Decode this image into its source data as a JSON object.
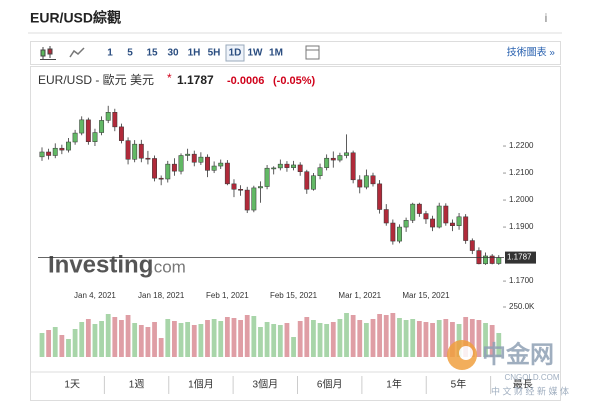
{
  "header": {
    "title": "EUR/USD綜觀",
    "info": "i"
  },
  "toolbar": {
    "intervals": [
      "1",
      "5",
      "15",
      "30",
      "1H",
      "5H",
      "1D",
      "1W",
      "1M"
    ],
    "selected_index": 6,
    "link": "技術圖表 »"
  },
  "quote": {
    "name": "EUR/USD - 歐元 美元",
    "marker": "*",
    "change": "-0.0006",
    "change_pct": "(-0.05%)"
  },
  "chart_data": {
    "type": "candlestick",
    "categories": [
      null,
      null,
      null,
      null,
      null,
      null,
      null,
      null,
      "Jan 4, 2021",
      null,
      null,
      null,
      null,
      null,
      null,
      null,
      null,
      null,
      "Jan 18, 2021",
      null,
      null,
      null,
      null,
      null,
      null,
      null,
      null,
      null,
      "Feb 1, 2021",
      null,
      null,
      null,
      null,
      null,
      null,
      null,
      null,
      null,
      "Feb 15, 2021",
      null,
      null,
      null,
      null,
      null,
      null,
      null,
      null,
      null,
      "Mar 1, 2021",
      null,
      null,
      null,
      null,
      null,
      null,
      null,
      null,
      null,
      "Mar 15, 2021",
      null,
      null,
      null,
      null,
      null,
      null,
      null,
      null,
      null,
      null,
      null
    ],
    "open": [
      1.216,
      1.2178,
      1.2165,
      1.2192,
      1.2185,
      1.2215,
      1.2248,
      1.2297,
      1.2216,
      1.225,
      1.2295,
      1.2325,
      1.2271,
      1.222,
      1.2151,
      1.2207,
      1.2155,
      1.2154,
      1.2081,
      1.2078,
      1.2133,
      1.2107,
      1.2165,
      1.217,
      1.214,
      1.2159,
      1.211,
      1.2126,
      1.2137,
      1.206,
      1.204,
      1.2037,
      1.1963,
      1.2045,
      1.205,
      1.2118,
      1.2119,
      1.2133,
      1.212,
      1.213,
      1.2105,
      1.204,
      1.209,
      1.212,
      1.2155,
      1.2148,
      1.2165,
      1.2175,
      1.2075,
      1.2048,
      1.209,
      1.206,
      1.1965,
      1.1915,
      1.1848,
      1.19,
      1.1925,
      1.1985,
      1.195,
      1.193,
      1.19,
      1.1978,
      1.1915,
      1.1905,
      1.1938,
      1.185,
      1.1813,
      1.1764,
      1.1793,
      1.1765
    ],
    "high": [
      1.2195,
      1.219,
      1.221,
      1.2205,
      1.223,
      1.226,
      1.231,
      1.2305,
      1.2264,
      1.231,
      1.2349,
      1.2338,
      1.2283,
      1.2232,
      1.2222,
      1.2223,
      1.2182,
      1.2165,
      1.2091,
      1.2145,
      1.2155,
      1.2173,
      1.219,
      1.2183,
      1.2177,
      1.2169,
      1.2143,
      1.215,
      1.2148,
      1.2077,
      1.2055,
      1.2049,
      1.2053,
      1.2069,
      1.213,
      1.2125,
      1.215,
      1.2144,
      1.2145,
      1.214,
      1.2112,
      1.21,
      1.2135,
      1.2169,
      1.218,
      1.2175,
      1.2243,
      1.2183,
      1.2092,
      1.2113,
      1.2101,
      1.2074,
      1.1985,
      1.1928,
      1.191,
      1.1935,
      1.199,
      1.199,
      1.196,
      1.1942,
      1.199,
      1.1988,
      1.1928,
      1.1952,
      1.1948,
      1.1858,
      1.1825,
      1.1806,
      1.18,
      1.1796
    ],
    "low": [
      1.2145,
      1.215,
      1.2155,
      1.217,
      1.2176,
      1.2205,
      1.224,
      1.2205,
      1.22,
      1.224,
      1.2285,
      1.2255,
      1.221,
      1.2132,
      1.214,
      1.214,
      1.2132,
      1.2069,
      1.2055,
      1.2065,
      1.209,
      1.2095,
      1.2145,
      1.2125,
      1.213,
      1.2085,
      1.21,
      1.2115,
      1.2055,
      1.2011,
      1.2016,
      1.1952,
      1.1955,
      1.199,
      1.204,
      1.2095,
      1.211,
      1.2105,
      1.211,
      1.209,
      1.2023,
      1.2035,
      1.2077,
      1.211,
      1.212,
      1.214,
      1.2155,
      1.2062,
      1.2025,
      1.204,
      1.205,
      1.195,
      1.1905,
      1.1835,
      1.184,
      1.1882,
      1.1915,
      1.1938,
      1.1912,
      1.1885,
      1.1895,
      1.1905,
      1.1885,
      1.189,
      1.1838,
      1.18,
      1.1762,
      1.176,
      1.1762,
      1.176
    ],
    "close": [
      1.2178,
      1.2165,
      1.2192,
      1.2185,
      1.2215,
      1.2248,
      1.2297,
      1.2216,
      1.225,
      1.2295,
      1.2325,
      1.2271,
      1.222,
      1.2151,
      1.2207,
      1.2155,
      1.2154,
      1.2081,
      1.2078,
      1.2133,
      1.2107,
      1.2165,
      1.217,
      1.214,
      1.2159,
      1.211,
      1.2126,
      1.2137,
      1.206,
      1.204,
      1.2037,
      1.1963,
      1.2045,
      1.205,
      1.2118,
      1.2119,
      1.2133,
      1.212,
      1.213,
      1.2105,
      1.204,
      1.209,
      1.212,
      1.2155,
      1.2148,
      1.2165,
      1.2175,
      1.2075,
      1.2048,
      1.209,
      1.206,
      1.1965,
      1.1915,
      1.1848,
      1.19,
      1.1925,
      1.1985,
      1.195,
      1.193,
      1.19,
      1.1978,
      1.1915,
      1.1905,
      1.1938,
      1.185,
      1.1813,
      1.1764,
      1.1793,
      1.1765,
      1.1787
    ],
    "up_color": "#62b865",
    "down_color": "#b02a3a",
    "ylim": [
      1.1667,
      1.2389
    ],
    "yticks": [
      {
        "value": 1.22,
        "label": "1.2200"
      },
      {
        "value": 1.21,
        "label": "1.2100"
      },
      {
        "value": 1.2,
        "label": "1.2000"
      },
      {
        "value": 1.19,
        "label": "1.1900"
      },
      {
        "value": 1.17,
        "label": "1.1700"
      }
    ],
    "last_price": {
      "value": 1.1787,
      "label": "1.1787"
    },
    "volume": {
      "values": [
        120000,
        135000,
        150000,
        110000,
        90000,
        140000,
        175000,
        190000,
        165000,
        180000,
        215000,
        200000,
        185000,
        210000,
        170000,
        160000,
        150000,
        175000,
        95000,
        190000,
        180000,
        170000,
        175000,
        160000,
        165000,
        185000,
        190000,
        180000,
        200000,
        195000,
        185000,
        210000,
        205000,
        150000,
        175000,
        165000,
        160000,
        170000,
        100000,
        180000,
        200000,
        185000,
        170000,
        165000,
        175000,
        190000,
        220000,
        210000,
        185000,
        170000,
        190000,
        215000,
        210000,
        220000,
        195000,
        185000,
        190000,
        180000,
        175000,
        170000,
        185000,
        190000,
        175000,
        165000,
        200000,
        190000,
        185000,
        170000,
        160000,
        120000
      ],
      "ylim": [
        0,
        275000
      ],
      "yticks": [
        {
          "value": 250000,
          "label": "250.0K"
        }
      ],
      "up_color": "#a8d5a9",
      "down_color": "#df9ea5"
    },
    "watermark": "Investing",
    "watermark_suffix": ".com"
  },
  "range_buttons": [
    "1天",
    "1週",
    "1個月",
    "3個月",
    "6個月",
    "1年",
    "5年",
    "最長"
  ],
  "brand": {
    "name": "中金网",
    "site": "CNGOLD.COM",
    "tagline": "中 文 财 经 新 媒 体"
  }
}
